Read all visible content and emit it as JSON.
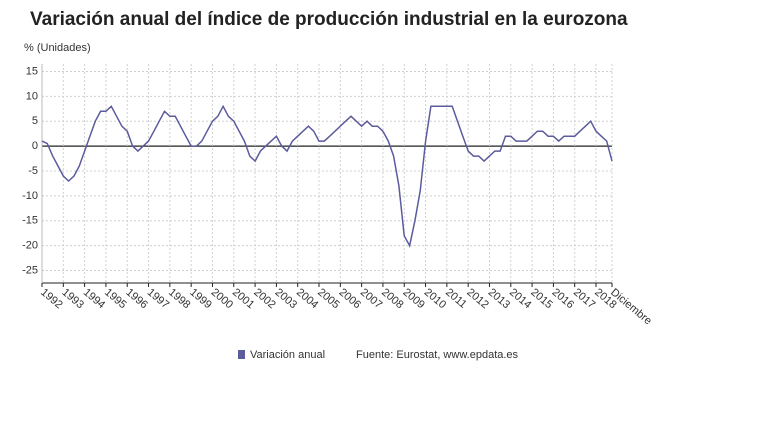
{
  "chart_data": {
    "type": "line",
    "title": "Variación anual del índice de producción industrial en la eurozona",
    "y_label": "% (Unidades)",
    "source": "Fuente: Eurostat, www.epdata.es",
    "categories": [
      "1992",
      null,
      null,
      null,
      "1993",
      null,
      null,
      null,
      "1994",
      null,
      null,
      null,
      "1995",
      null,
      null,
      null,
      "1996",
      null,
      null,
      null,
      "1997",
      null,
      null,
      null,
      "1998",
      null,
      null,
      null,
      "1999",
      null,
      null,
      null,
      "2000",
      null,
      null,
      null,
      "2001",
      null,
      null,
      null,
      "2002",
      null,
      null,
      null,
      "2003",
      null,
      null,
      null,
      "2004",
      null,
      null,
      null,
      "2005",
      null,
      null,
      null,
      "2006",
      null,
      null,
      null,
      "2007",
      null,
      null,
      null,
      "2008",
      null,
      null,
      null,
      "2009",
      null,
      null,
      null,
      "2010",
      null,
      null,
      null,
      "2011",
      null,
      null,
      null,
      "2012",
      null,
      null,
      null,
      "2013",
      null,
      null,
      null,
      "2014",
      null,
      null,
      null,
      "2015",
      null,
      null,
      null,
      "2016",
      null,
      null,
      null,
      "2017",
      null,
      null,
      null,
      "2018",
      null,
      null,
      "Diciembre"
    ],
    "series": [
      {
        "name": "Variación anual",
        "color": "#5b5b9e",
        "values": [
          1,
          0.5,
          -2,
          -4,
          -6,
          -7,
          -6,
          -4,
          -1,
          2,
          5,
          7,
          7,
          8,
          6,
          4,
          3,
          0,
          -1,
          0,
          1,
          3,
          5,
          7,
          6,
          6,
          4,
          2,
          0,
          0,
          1,
          3,
          5,
          6,
          8,
          6,
          5,
          3,
          1,
          -2,
          -3,
          -1,
          0,
          1,
          2,
          0,
          -1,
          1,
          2,
          3,
          4,
          3,
          1,
          1,
          2,
          3,
          4,
          5,
          6,
          5,
          4,
          5,
          4,
          4,
          3,
          1,
          -2,
          -8,
          -18,
          -20,
          -15,
          -9,
          1,
          8,
          8,
          8,
          8,
          8,
          5,
          2,
          -1,
          -2,
          -2,
          -3,
          -2,
          -1,
          -1,
          2,
          2,
          1,
          1,
          1,
          2,
          3,
          3,
          2,
          2,
          1,
          2,
          2,
          2,
          3,
          4,
          5,
          3,
          2,
          1,
          -3
        ]
      }
    ],
    "ylim": [
      -27.5,
      16.5
    ],
    "yticks": [
      15,
      10,
      5,
      0,
      -5,
      -10,
      -15,
      -20,
      -25
    ],
    "grid": true
  }
}
